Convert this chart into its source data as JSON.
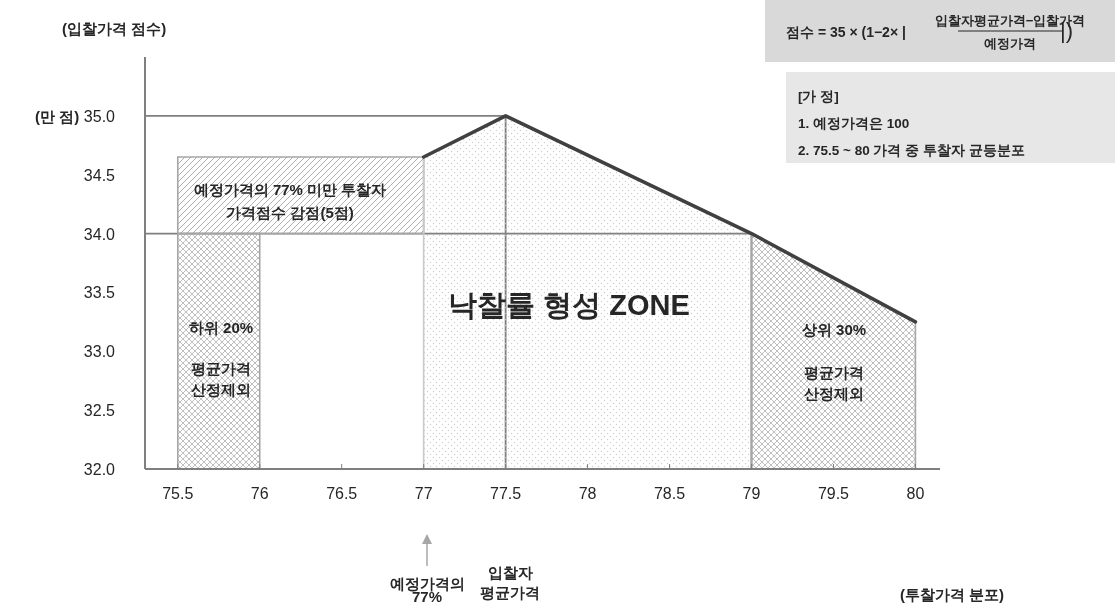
{
  "chart_data": {
    "type": "area",
    "ylabel": "(입찰가격 점수)",
    "xlim": [
      75.3,
      80.15
    ],
    "ylim": [
      32,
      35.5
    ],
    "xticks": [
      75.5,
      76,
      76.5,
      77,
      77.5,
      78,
      78.5,
      79,
      79.5,
      80
    ],
    "yticks": [
      {
        "value": 32,
        "label": "32.0"
      },
      {
        "value": 32.5,
        "label": "32.5"
      },
      {
        "value": 33,
        "label": "33.0"
      },
      {
        "value": 33.5,
        "label": "33.5"
      },
      {
        "value": 34,
        "label": "34.0"
      },
      {
        "value": 34.5,
        "label": "34.5"
      },
      {
        "value": 35,
        "label": "35.0"
      }
    ],
    "series": [
      {
        "type": "line",
        "color": "#7f7f7f",
        "x": [
          75.3,
          77.5,
          77.5
        ],
        "values": [
          35,
          35,
          32
        ]
      },
      {
        "type": "line",
        "color": "#7f7f7f",
        "x": [
          75.3,
          79,
          79
        ],
        "values": [
          34,
          34,
          32
        ]
      },
      {
        "color": "#a6a6a6",
        "x": [
          75.5,
          77
        ],
        "values": [
          null,
          null
        ],
        "lower": [
          34,
          34
        ],
        "upper": [
          34.65,
          34.65
        ]
      },
      {
        "color": "#a6a6a6",
        "x": [
          75.5,
          76
        ],
        "values": [
          34,
          34
        ]
      },
      {
        "color": "#c8c8c8",
        "x": [
          77,
          77.5,
          79
        ],
        "values": [
          34.65,
          35,
          34
        ]
      },
      {
        "color": "#a6a6a6",
        "x": [
          79,
          80
        ],
        "values": [
          34,
          33.25
        ]
      },
      {
        "type": "line",
        "color": "#404040",
        "x": [
          77,
          77.5,
          79,
          80
        ],
        "values": [
          34.65,
          35,
          34,
          33.25
        ]
      }
    ],
    "annotations": [
      "예정가격의 77% 미만 투찰자",
      "가격점수 감점(5점)",
      "하위 20%",
      "평균가격",
      "산정제외",
      "낙찰률 형성 ZONE",
      "상위 30%",
      "평균가격",
      "산정제외",
      "입찰자",
      "평균가격",
      "예정가격의",
      "77%",
      "(만 점)",
      "점수 = 35 × (1−2× |",
      "입찰자평균가격−입찰가격",
      "예정가격",
      "|)",
      "[가 정]",
      "1. 예정가격은 100",
      "2. 75.5 ~ 80 가격 중 투찰자 균등분포",
      "(투찰가격 분포)"
    ]
  }
}
